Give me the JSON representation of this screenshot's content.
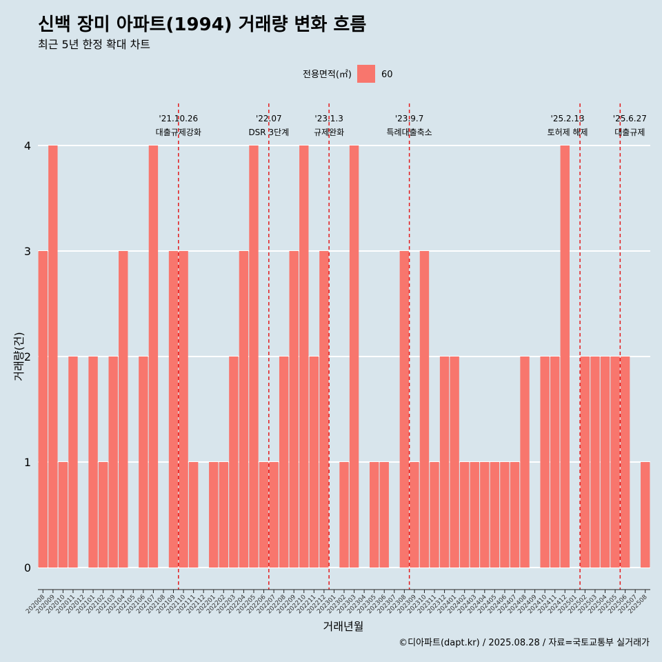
{
  "chart_data": {
    "type": "bar",
    "title": "신백 장미 아파트(1994) 거래량 변화 흐름",
    "subtitle": "최근 5년 한정 확대 차트",
    "xlabel": "거래년월",
    "ylabel": "거래량(건)",
    "ylim": [
      0,
      4
    ],
    "yticks": [
      "0",
      "1",
      "2",
      "3",
      "4"
    ],
    "grid": "horizontal",
    "legend": {
      "title": "전용면적(㎡)",
      "placement": "top",
      "entries": [
        {
          "label": "60",
          "color": "#f8766d"
        }
      ]
    },
    "categories": [
      "202008",
      "202009",
      "202010",
      "202011",
      "202012",
      "202101",
      "202102",
      "202103",
      "202104",
      "202105",
      "202106",
      "202107",
      "202108",
      "202109",
      "202110",
      "202111",
      "202112",
      "202201",
      "202202",
      "202203",
      "202204",
      "202205",
      "202206",
      "202207",
      "202208",
      "202209",
      "202210",
      "202211",
      "202212",
      "202301",
      "202302",
      "202303",
      "202304",
      "202305",
      "202306",
      "202307",
      "202308",
      "202309",
      "202310",
      "202311",
      "202312",
      "202401",
      "202402",
      "202403",
      "202404",
      "202405",
      "202406",
      "202407",
      "202408",
      "202409",
      "202410",
      "202411",
      "202412",
      "202501",
      "202502",
      "202503",
      "202504",
      "202505",
      "202506",
      "202507",
      "202508"
    ],
    "series": [
      {
        "name": "60",
        "color": "#f8766d",
        "values": [
          3,
          4,
          1,
          2,
          0,
          2,
          1,
          2,
          3,
          0,
          2,
          4,
          0,
          3,
          3,
          1,
          0,
          1,
          1,
          2,
          3,
          4,
          1,
          1,
          2,
          3,
          4,
          2,
          3,
          0,
          1,
          4,
          0,
          1,
          1,
          0,
          3,
          1,
          3,
          1,
          2,
          2,
          1,
          1,
          1,
          1,
          1,
          1,
          2,
          0,
          2,
          2,
          4,
          0,
          2,
          2,
          2,
          2,
          2,
          0,
          1
        ]
      }
    ],
    "annotations": [
      {
        "at": "202110",
        "date": "'21.10.26",
        "text": "대출규제강화"
      },
      {
        "at": "202207",
        "date": "'22.07",
        "text": "DSR 3단계"
      },
      {
        "at": "202301",
        "date": "'23.1.3",
        "text": "규제완화"
      },
      {
        "at": "202309",
        "date": "'23.9.7",
        "text": "특례대출축소"
      },
      {
        "at": "202502",
        "date": "'25.2.13",
        "text": "토허제 해제"
      },
      {
        "at": "202506",
        "date": "'25.6.27",
        "text": "대출규제"
      }
    ],
    "annotation_color": "#e41a1c"
  },
  "caption": "©디아파트(dapt.kr) / 2025.08.28 / 자료=국토교통부 실거래가"
}
